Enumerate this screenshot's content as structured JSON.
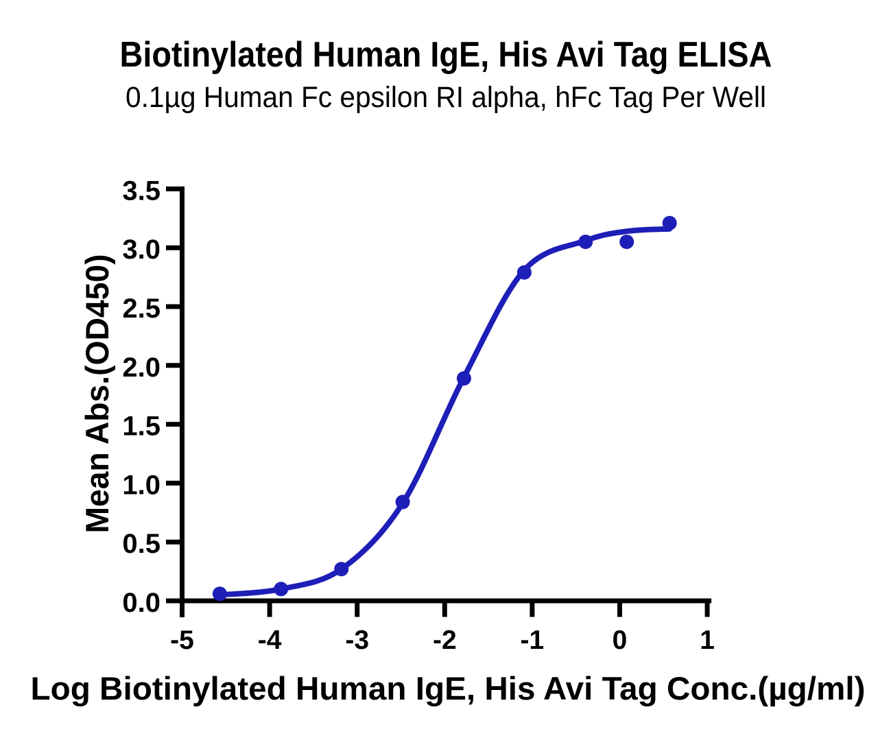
{
  "page": {
    "background_color": "#ffffff",
    "text_color": "#000000"
  },
  "chart_data": {
    "type": "scatter",
    "title": "Biotinylated Human IgE, His Avi Tag ELISA",
    "subtitle": "0.1µg Human Fc epsilon RI alpha, hFc Tag Per Well",
    "xlabel": "Log Biotinylated Human IgE, His Avi Tag Conc.(µg/ml)",
    "ylabel": "Mean Abs.(OD450)",
    "xlim": [
      -5,
      1
    ],
    "ylim": [
      0,
      3.5
    ],
    "x_ticks": [
      -5,
      -4,
      -3,
      -2,
      -1,
      0,
      1
    ],
    "y_ticks": [
      0.0,
      0.5,
      1.0,
      1.5,
      2.0,
      2.5,
      3.0,
      3.5
    ],
    "grid": false,
    "legend_position": "none",
    "axis_color": "#000000",
    "series": [
      {
        "name": "Biotinylated Human IgE, His Avi Tag",
        "color": "#1e1eb8",
        "marker": "circle",
        "x": [
          -4.57,
          -3.87,
          -3.18,
          -2.48,
          -1.78,
          -1.09,
          -0.39,
          0.08,
          0.57
        ],
        "y": [
          0.06,
          0.1,
          0.27,
          0.84,
          1.89,
          2.79,
          3.05,
          3.05,
          3.21
        ]
      }
    ],
    "fit_curve": {
      "name": "4PL fit curve",
      "color": "#1e1eb8",
      "x": [
        -4.57,
        -3.87,
        -3.18,
        -2.48,
        -1.78,
        -1.09,
        -0.39,
        0.08,
        0.57
      ],
      "y": [
        0.05,
        0.1,
        0.27,
        0.83,
        1.9,
        2.81,
        3.06,
        3.14,
        3.16
      ]
    }
  }
}
